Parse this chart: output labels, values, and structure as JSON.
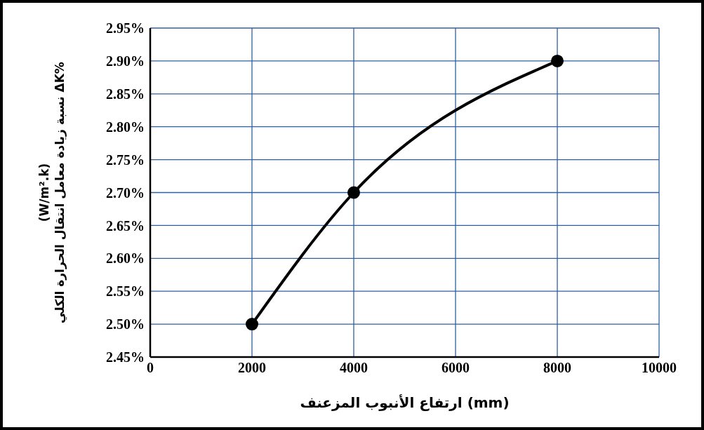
{
  "chart_data": {
    "type": "line",
    "xlabel": "ارتفاع الأنبوب المزعنف (mm)",
    "ylabel": "(W/m².k)\nنسبة زيادة معامل انتقال الحرارة الكلي ΔK%",
    "x": [
      2000,
      4000,
      8000
    ],
    "series": [
      {
        "color": "#000000",
        "values": [
          2.5,
          2.7,
          2.9
        ]
      }
    ],
    "xlim": [
      0,
      10000
    ],
    "xticks": [
      0,
      2000,
      4000,
      6000,
      8000,
      10000
    ],
    "ylim": [
      2.45,
      2.95
    ],
    "yticks": [
      {
        "value": 2.45,
        "label": "2.45%"
      },
      {
        "value": 2.5,
        "label": "2.50%"
      },
      {
        "value": 2.55,
        "label": "2.55%"
      },
      {
        "value": 2.6,
        "label": "2.60%"
      },
      {
        "value": 2.65,
        "label": "2.65%"
      },
      {
        "value": 2.7,
        "label": "2.70%"
      },
      {
        "value": 2.75,
        "label": "2.75%"
      },
      {
        "value": 2.8,
        "label": "2.80%"
      },
      {
        "value": 2.85,
        "label": "2.85%"
      },
      {
        "value": 2.9,
        "label": "2.90%"
      },
      {
        "value": 2.95,
        "label": "2.95%"
      }
    ],
    "grid": true,
    "marker": "circle",
    "line_style": "solid",
    "legend": false
  }
}
